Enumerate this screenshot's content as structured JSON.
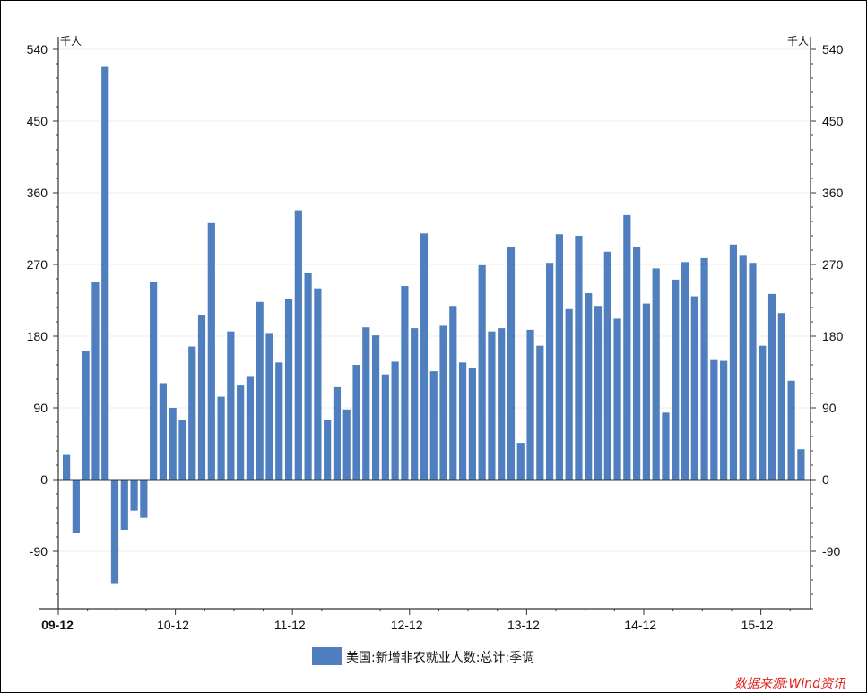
{
  "chart_data": {
    "type": "bar",
    "y_unit": "千人",
    "ylim": [
      -162,
      540
    ],
    "yticks": [
      -90,
      0,
      90,
      180,
      270,
      360,
      450,
      540
    ],
    "x_tick_labels": [
      "09-12",
      "10-12",
      "11-12",
      "12-12",
      "13-12",
      "14-12",
      "15-12"
    ],
    "x_start": "2009-12",
    "legend": "美国:新增非农就业人数:总计:季调",
    "legend_position": "bottom-center",
    "grid": true,
    "series": [
      {
        "name": "美国:新增非农就业人数:总计:季调",
        "color": "#4f7fbf",
        "values": [
          32,
          -67,
          162,
          248,
          518,
          -130,
          -63,
          -39,
          -48,
          248,
          121,
          90,
          75,
          167,
          207,
          322,
          104,
          186,
          118,
          130,
          223,
          184,
          147,
          227,
          338,
          259,
          240,
          75,
          116,
          88,
          144,
          191,
          181,
          132,
          148,
          243,
          190,
          309,
          136,
          193,
          218,
          147,
          140,
          269,
          186,
          190,
          292,
          46,
          188,
          168,
          272,
          308,
          214,
          306,
          234,
          218,
          286,
          202,
          332,
          292,
          221,
          265,
          84,
          251,
          273,
          230,
          278,
          150,
          149,
          295,
          282,
          272,
          168,
          233,
          209,
          124,
          38
        ]
      }
    ]
  },
  "watermark": "数据来源:Wind资讯"
}
